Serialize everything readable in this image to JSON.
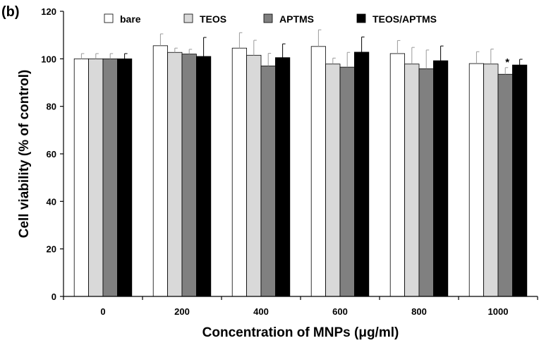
{
  "panel_label": "(b)",
  "chart_data": {
    "type": "bar",
    "title": "",
    "xlabel": "Concentration of MNPs (μg/ml)",
    "ylabel": "Cell viability (% of control)",
    "ylim": [
      0,
      120
    ],
    "yticks": [
      0,
      20,
      40,
      60,
      80,
      100,
      120
    ],
    "grid": false,
    "legend_position": "top",
    "categories": [
      "0",
      "200",
      "400",
      "600",
      "800",
      "1000"
    ],
    "series": [
      {
        "name": "bare",
        "color": "#ffffff",
        "values": [
          100,
          105.5,
          104.5,
          105.2,
          102.2,
          98
        ],
        "errors": [
          2.2,
          5,
          6.5,
          7,
          5.5,
          5
        ]
      },
      {
        "name": "TEOS",
        "color": "#d9d9d9",
        "values": [
          100,
          102.7,
          101.5,
          97.8,
          97.8,
          97.8
        ],
        "errors": [
          2.2,
          1.8,
          6.3,
          2.5,
          7,
          6.3
        ]
      },
      {
        "name": "APTMS",
        "color": "#808080",
        "values": [
          100,
          102,
          97,
          96.5,
          95.8,
          93.5
        ],
        "errors": [
          2.2,
          2,
          5.3,
          6.2,
          7.9,
          2.8
        ]
      },
      {
        "name": "TEOS/APTMS",
        "color": "#000000",
        "values": [
          100,
          101,
          100.5,
          102.8,
          99.2,
          97.4
        ],
        "errors": [
          2.2,
          8,
          5.8,
          6.4,
          6.2,
          2.4
        ]
      }
    ],
    "annotations": [
      {
        "text": "*",
        "category": "1000",
        "series": "APTMS"
      }
    ]
  }
}
